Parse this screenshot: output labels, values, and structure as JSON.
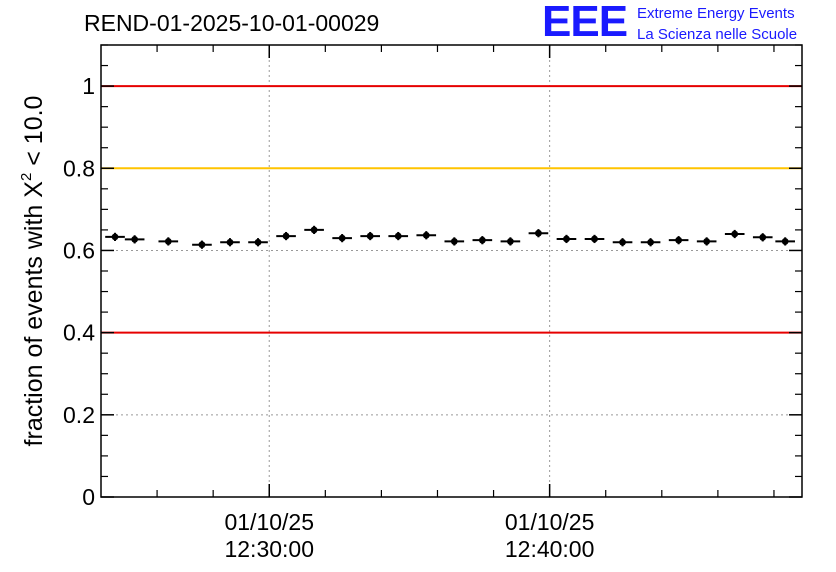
{
  "header": {
    "run_id": "REND-01-2025-10-01-00029"
  },
  "logo": {
    "mark": "EEE",
    "line1": "Extreme Energy Events",
    "line2": "La Scienza nelle Scuole",
    "color": "#1a1aff"
  },
  "chart_data": {
    "type": "scatter",
    "title": "REND-01-2025-10-01-00029",
    "ylabel_prefix": "fraction of events with ",
    "ylabel_symbol": "X",
    "ylabel_superscript": "2",
    "ylabel_suffix": " < 10.0",
    "xlabel": "",
    "x_units": "minutes since 12:24:00",
    "xlim": [
      0,
      25
    ],
    "ylim": [
      0,
      1.1
    ],
    "y_ticks": [
      0,
      0.2,
      0.4,
      0.6,
      0.8,
      1
    ],
    "y_tick_labels": [
      "0",
      "0.2",
      "0.4",
      "0.6",
      "0.8",
      "1"
    ],
    "x_major_ticks": [
      6,
      16
    ],
    "x_tick_labels": [
      {
        "date": "01/10/25",
        "time": "12:30:00"
      },
      {
        "date": "01/10/25",
        "time": "12:40:00"
      }
    ],
    "x_minor_step": 2,
    "grid": true,
    "reference_lines": [
      {
        "value": 1.0,
        "color": "#e60000"
      },
      {
        "value": 0.8,
        "color": "#ffc400"
      },
      {
        "value": 0.4,
        "color": "#e60000"
      }
    ],
    "series": [
      {
        "name": "fraction",
        "bin_width": 0.7,
        "x": [
          0.5,
          1.2,
          2.4,
          3.6,
          4.6,
          5.6,
          6.6,
          7.6,
          8.6,
          9.6,
          10.6,
          11.6,
          12.6,
          13.6,
          14.6,
          15.6,
          16.6,
          17.6,
          18.6,
          19.6,
          20.6,
          21.6,
          22.6,
          23.6,
          24.4
        ],
        "values": [
          0.633,
          0.627,
          0.622,
          0.614,
          0.62,
          0.62,
          0.635,
          0.65,
          0.63,
          0.635,
          0.635,
          0.637,
          0.622,
          0.625,
          0.622,
          0.642,
          0.628,
          0.628,
          0.62,
          0.62,
          0.625,
          0.622,
          0.64,
          0.632,
          0.622
        ],
        "errors": [
          0.01,
          0.01,
          0.01,
          0.01,
          0.01,
          0.01,
          0.01,
          0.01,
          0.01,
          0.01,
          0.01,
          0.01,
          0.01,
          0.01,
          0.01,
          0.01,
          0.01,
          0.01,
          0.01,
          0.01,
          0.01,
          0.01,
          0.01,
          0.01,
          0.01
        ]
      }
    ]
  }
}
